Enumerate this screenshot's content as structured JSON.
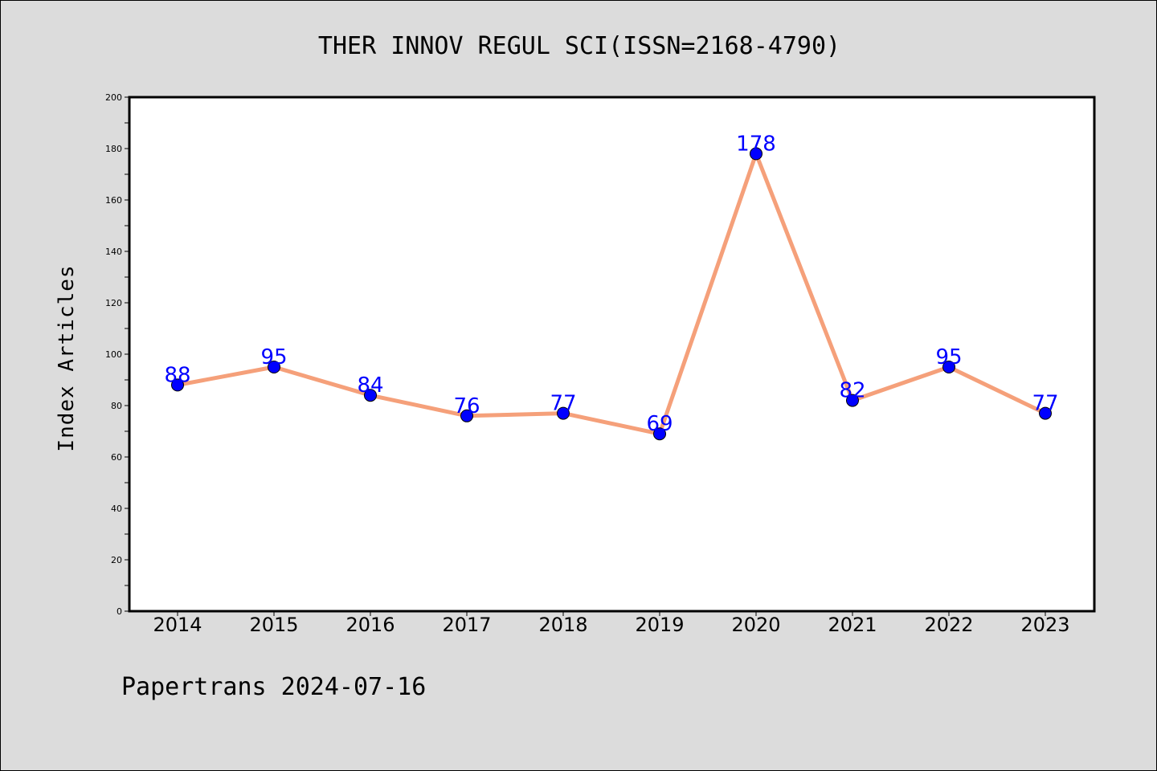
{
  "chart_data": {
    "type": "line",
    "title": "THER INNOV REGUL SCI(ISSN=2168-4790)",
    "ylabel": "Index Articles",
    "xlabel": "",
    "categories": [
      "2014",
      "2015",
      "2016",
      "2017",
      "2018",
      "2019",
      "2020",
      "2021",
      "2022",
      "2023"
    ],
    "values": [
      88,
      95,
      84,
      76,
      77,
      69,
      178,
      82,
      95,
      77
    ],
    "ylim": [
      0,
      200
    ],
    "yticks": [
      0,
      20,
      40,
      60,
      80,
      100,
      120,
      140,
      160,
      180,
      200
    ],
    "grid": false,
    "data_labels": true,
    "line_color": "#f5a07a",
    "marker_color": "#0000ff",
    "label_color": "#0000ff",
    "plot_background": "#ffffff",
    "figure_background": "#dcdcdc"
  },
  "footer": {
    "text": "Papertrans 2024-07-16"
  }
}
